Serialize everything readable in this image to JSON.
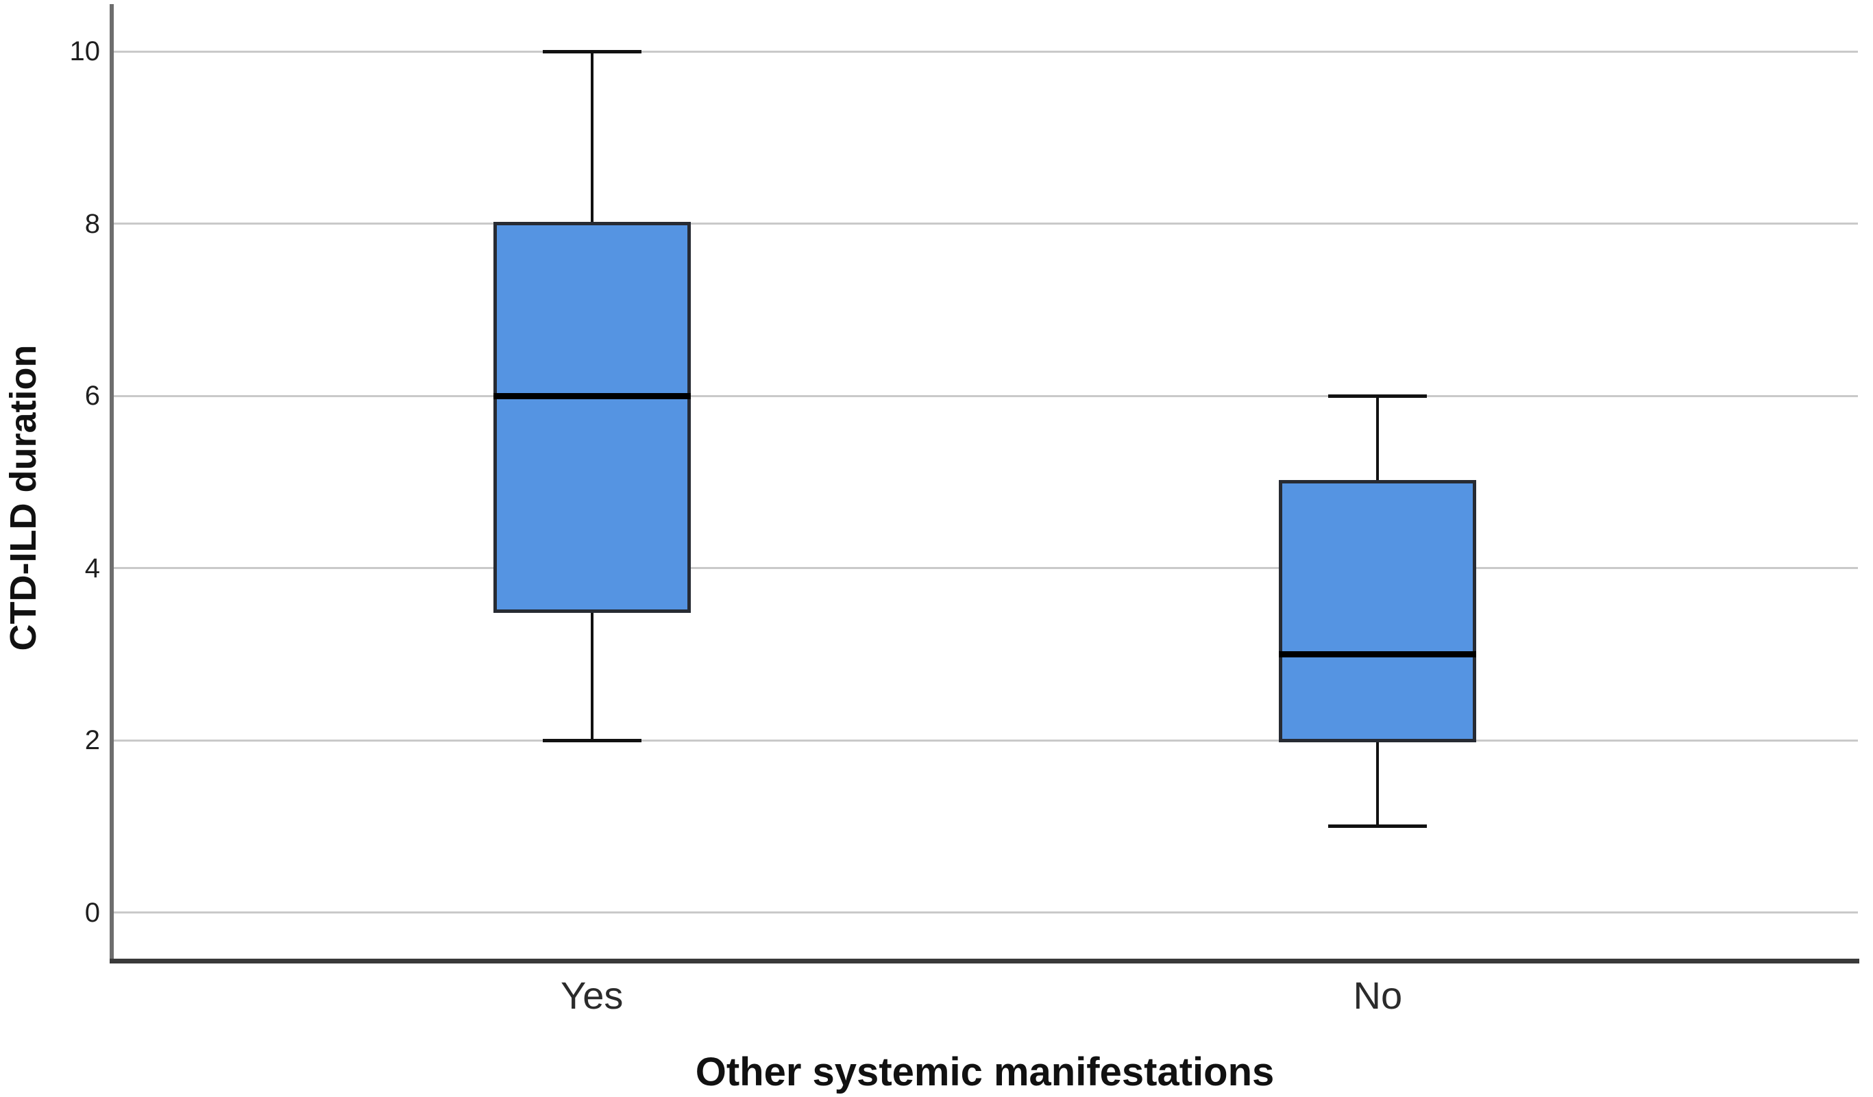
{
  "chart_data": {
    "type": "boxplot",
    "title": "",
    "xlabel": "Other systemic manifestations",
    "ylabel": "CTD-ILD duration",
    "categories": [
      "Yes",
      "No"
    ],
    "series": [
      {
        "category": "Yes",
        "whisker_low": 2,
        "q1": 3.5,
        "median": 6,
        "q3": 8,
        "whisker_high": 10
      },
      {
        "category": "No",
        "whisker_low": 1,
        "q1": 2,
        "median": 3,
        "q3": 5,
        "whisker_high": 6
      }
    ],
    "yticks": [
      0,
      2,
      4,
      6,
      8,
      10
    ],
    "ylim": [
      -0.56,
      10.55
    ],
    "grid": true,
    "legend": false,
    "colors": {
      "box_fill": "#5594E2",
      "box_border": "#272b33",
      "median": "#000000",
      "whisker": "#111111",
      "gridline": "#c9c9c9"
    }
  }
}
